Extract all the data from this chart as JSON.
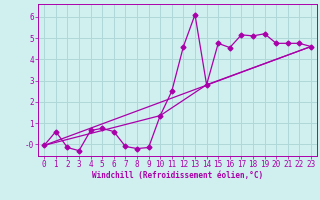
{
  "xlabel": "Windchill (Refroidissement éolien,°C)",
  "bg_color": "#d0f0f0",
  "grid_color": "#b0d8d8",
  "line_color": "#aa00aa",
  "xlim": [
    -0.5,
    23.5
  ],
  "ylim": [
    -0.55,
    6.6
  ],
  "xticks": [
    0,
    1,
    2,
    3,
    4,
    5,
    6,
    7,
    8,
    9,
    10,
    11,
    12,
    13,
    14,
    15,
    16,
    17,
    18,
    19,
    20,
    21,
    22,
    23
  ],
  "yticks": [
    0,
    1,
    2,
    3,
    4,
    5,
    6
  ],
  "ytick_labels": [
    "-0",
    "1",
    "2",
    "3",
    "4",
    "5",
    "6"
  ],
  "series1_x": [
    0,
    1,
    2,
    3,
    4,
    5,
    6,
    7,
    8,
    9,
    10,
    11,
    12,
    13,
    14,
    15,
    16,
    17,
    18,
    19,
    20,
    21,
    22,
    23
  ],
  "series1_y": [
    -0.05,
    0.6,
    -0.15,
    -0.3,
    0.65,
    0.75,
    0.6,
    -0.1,
    -0.2,
    -0.15,
    1.35,
    2.5,
    4.6,
    6.1,
    2.8,
    4.75,
    4.55,
    5.15,
    5.1,
    5.2,
    4.75,
    4.75,
    4.75,
    4.6
  ],
  "series2_x": [
    0,
    23
  ],
  "series2_y": [
    -0.05,
    4.6
  ],
  "series3_x": [
    0,
    10,
    14,
    23
  ],
  "series3_y": [
    -0.05,
    1.35,
    2.8,
    4.6
  ],
  "xlabel_fontsize": 5.5,
  "tick_fontsize": 5.5,
  "marker_size": 2.5,
  "line_width": 0.9
}
